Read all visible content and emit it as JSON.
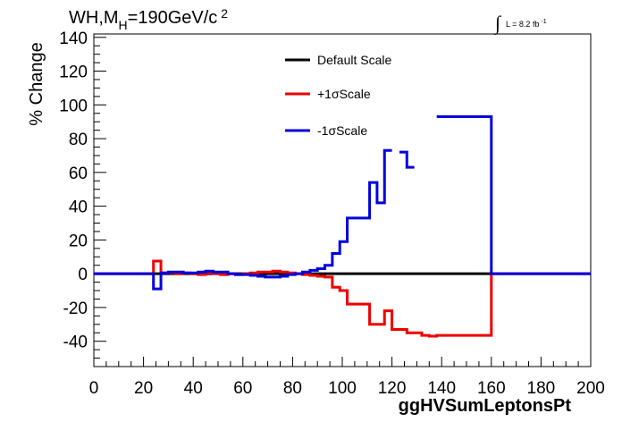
{
  "chart_data": {
    "type": "line",
    "title_parts": {
      "main": "WH,M",
      "sub": "H",
      "rest": "=190GeV/c",
      "sup": "2"
    },
    "lumi": {
      "text": "L = 8.2 fb",
      "sup": "-1"
    },
    "xlabel": "ggHVSumLeptonsPt",
    "ylabel": "% Change",
    "xlim": [
      0,
      200
    ],
    "ylim": [
      -55,
      142
    ],
    "x_ticks": [
      0,
      20,
      40,
      60,
      80,
      100,
      120,
      140,
      160,
      180,
      200
    ],
    "x_tick_labels": [
      "0",
      "20",
      "40",
      "60",
      "80",
      "100",
      "120",
      "140",
      "160",
      "180",
      "200"
    ],
    "y_ticks": [
      -40,
      -20,
      0,
      20,
      40,
      60,
      80,
      100,
      120,
      140
    ],
    "y_tick_labels": [
      "-40",
      "-20",
      "0",
      "20",
      "40",
      "60",
      "80",
      "100",
      "120",
      "140"
    ],
    "grid": false,
    "legend_position": "top-center",
    "series": [
      {
        "name": "Default Scale",
        "color": "#000000",
        "edges": [
          0,
          200
        ],
        "values": [
          0
        ]
      },
      {
        "name": "+1σScale",
        "color": "#ee0000",
        "edges": [
          0,
          24,
          27,
          30,
          33,
          36,
          39,
          42,
          45,
          48,
          51,
          54,
          57,
          60,
          63,
          66,
          69,
          72,
          75,
          78,
          81,
          84,
          87,
          90,
          93,
          96,
          99,
          102,
          105,
          108,
          111,
          114,
          117,
          120,
          123,
          126,
          129,
          132,
          135,
          138,
          160,
          200
        ],
        "values": [
          0,
          7.5,
          0.5,
          0.5,
          0,
          0.5,
          0,
          -0.5,
          0.5,
          0,
          -0.5,
          0,
          -0.5,
          0,
          0.5,
          1,
          1,
          1.5,
          1,
          0.5,
          0,
          -0.5,
          -1,
          -1.5,
          -2,
          -8,
          -10,
          -18,
          -18,
          -18,
          -30,
          -30,
          -22,
          -33,
          -33,
          -35,
          -35,
          -36.5,
          -37,
          -36.5,
          0
        ]
      },
      {
        "name": "-1σScale",
        "color": "#0000dd",
        "edges": [
          0,
          24,
          27,
          30,
          33,
          36,
          39,
          42,
          45,
          48,
          51,
          54,
          57,
          60,
          63,
          66,
          69,
          72,
          75,
          78,
          81,
          84,
          87,
          90,
          93,
          96,
          99,
          102,
          105,
          108,
          111,
          114,
          117,
          120,
          123,
          126,
          129,
          138,
          160,
          200
        ],
        "values": [
          0,
          -9,
          0.5,
          1,
          1,
          0.5,
          0.5,
          1,
          1.5,
          1,
          1,
          0,
          -0.5,
          -0.5,
          -1,
          -1.5,
          -2,
          -2,
          -1.5,
          -0.5,
          0,
          1,
          2,
          3,
          5,
          12,
          19,
          33,
          33,
          33,
          54,
          42,
          73,
          null,
          72,
          63,
          null,
          93,
          0
        ]
      }
    ]
  }
}
